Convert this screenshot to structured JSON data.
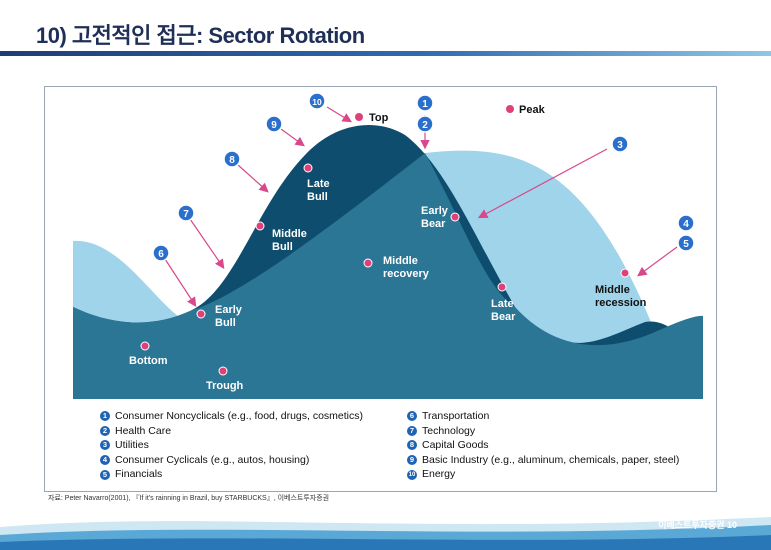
{
  "title": "10) 고전적인 접근: Sector Rotation",
  "labels": {
    "top": "Top",
    "peak": "Peak",
    "bottom": "Bottom",
    "trough": "Trough",
    "early_bull": [
      "Early",
      "Bull"
    ],
    "middle_bull": [
      "Middle",
      "Bull"
    ],
    "late_bull": [
      "Late",
      "Bull"
    ],
    "middle_recovery": [
      "Middle",
      "recovery"
    ],
    "early_bear": [
      "Early",
      "Bear"
    ],
    "late_bear": [
      "Late",
      "Bear"
    ],
    "middle_recession": [
      "Middle",
      "recession"
    ]
  },
  "markers": [
    "1",
    "2",
    "3",
    "4",
    "5",
    "6",
    "7",
    "8",
    "9",
    "10"
  ],
  "legend_left": [
    {
      "num": "1",
      "text": "Consumer Noncyclicals (e.g., food, drugs, cosmetics)"
    },
    {
      "num": "2",
      "text": "Health Care"
    },
    {
      "num": "3",
      "text": "Utilities"
    },
    {
      "num": "4",
      "text": "Consumer Cyclicals (e.g., autos, housing)"
    },
    {
      "num": "5",
      "text": "Financials"
    }
  ],
  "legend_right": [
    {
      "num": "6",
      "text": "Transportation"
    },
    {
      "num": "7",
      "text": "Technology"
    },
    {
      "num": "8",
      "text": "Capital Goods"
    },
    {
      "num": "9",
      "text": "Basic Industry (e.g., aluminum, chemicals, paper, steel)"
    },
    {
      "num": "10",
      "text": "Energy"
    }
  ],
  "source": "자료: Peter Navarro(2001), 『If it's rainning in Brazil, buy STARBUCKS』, 이베스트투자증권",
  "footer": "이베스트투자증권  10",
  "colors": {
    "light_curve": "#9fd4ea",
    "dark_curve": "#0e4d6d",
    "mid_fill": "#2b7595",
    "pink_dot": "#e0407a",
    "arrow": "#d9488a",
    "marker": "#2a6fcb"
  }
}
